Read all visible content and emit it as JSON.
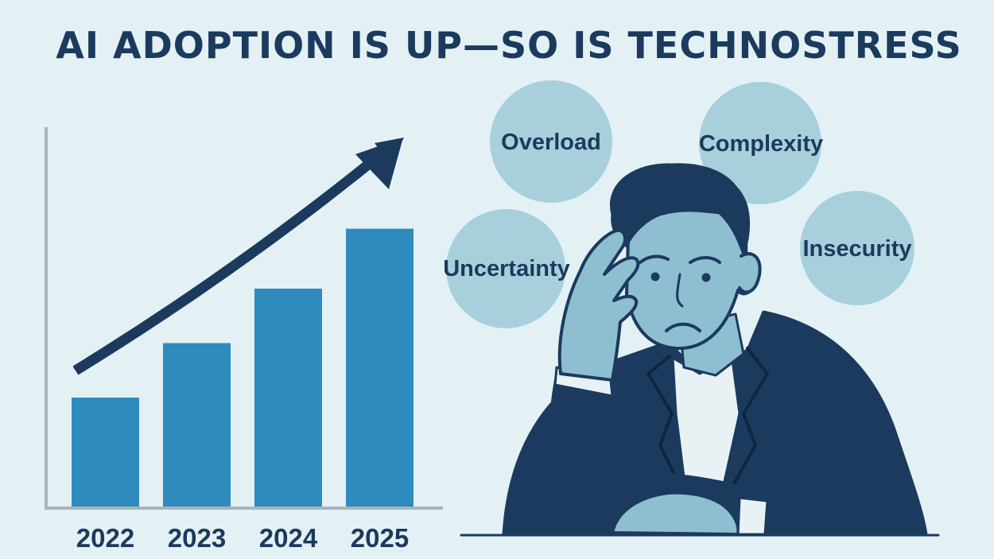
{
  "title": "AI ADOPTION IS UP—SO IS TECHNOSTRESS",
  "chart_data": {
    "type": "bar",
    "categories": [
      "2022",
      "2023",
      "2024",
      "2025"
    ],
    "values": [
      1,
      1.5,
      2,
      2.55
    ],
    "trend_arrow": "upward",
    "colors": {
      "bar": "#2f8bbd",
      "axis": "#a8b4bc",
      "arrow": "#1b3a5e"
    }
  },
  "stressors": [
    {
      "label": "Overload"
    },
    {
      "label": "Complexity"
    },
    {
      "label": "Uncertainty"
    },
    {
      "label": "Insecurity"
    }
  ],
  "colors": {
    "background": "#e3f1f4",
    "title": "#1b3a5e",
    "bubble": "#a7d0dc",
    "suit": "#1b3a5e",
    "skin": "#8dbfd0"
  },
  "illustration": {
    "subject": "stressed-businessman-holding-head"
  }
}
